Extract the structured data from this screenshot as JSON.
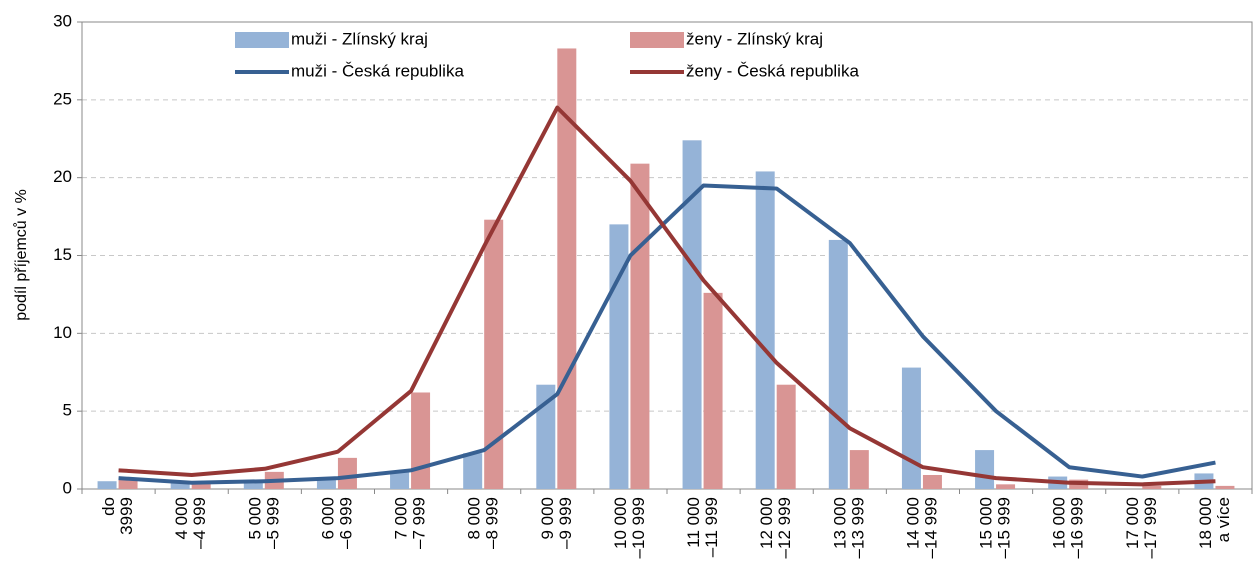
{
  "chart_data": {
    "type": "bar",
    "y_label": "podíl příjemců v %",
    "categories": [
      [
        "do",
        "3999"
      ],
      [
        "4 000",
        "–4 999"
      ],
      [
        "5 000",
        "–5 999"
      ],
      [
        "6 000",
        "–6 999"
      ],
      [
        "7 000",
        "–7 999"
      ],
      [
        "8 000",
        "–8 999"
      ],
      [
        "9 000",
        "–9 999"
      ],
      [
        "10 000",
        "–10 999"
      ],
      [
        "11 000",
        "–11 999"
      ],
      [
        "12 000",
        "–12 999"
      ],
      [
        "13 000",
        "–13 999"
      ],
      [
        "14 000",
        "–14 999"
      ],
      [
        "15 000",
        "–15 999"
      ],
      [
        "16 000",
        "–16 999"
      ],
      [
        "17 000",
        "–17 999"
      ],
      [
        "18 000",
        "a více"
      ]
    ],
    "series": [
      {
        "name": "muži - Zlínský kraj",
        "type": "bar",
        "color": "#95b3d7",
        "values": [
          0.5,
          0.4,
          0.5,
          0.6,
          1.1,
          2.3,
          6.7,
          17.0,
          22.4,
          20.4,
          16.0,
          7.8,
          2.5,
          0.8,
          0.0,
          1.0
        ]
      },
      {
        "name": "ženy - Zlínský kraj",
        "type": "bar",
        "color": "#d99594",
        "values": [
          0.7,
          0.5,
          1.1,
          2.0,
          6.2,
          17.3,
          28.3,
          20.9,
          12.6,
          6.7,
          2.5,
          0.9,
          0.3,
          0.6,
          0.2,
          0.2
        ]
      },
      {
        "name": "muži - Česká republika",
        "type": "line",
        "color": "#376092",
        "values": [
          0.7,
          0.4,
          0.5,
          0.7,
          1.2,
          2.5,
          6.1,
          15.0,
          19.5,
          19.3,
          15.8,
          9.8,
          5.0,
          1.4,
          0.8,
          1.7
        ]
      },
      {
        "name": "ženy - Česká republika",
        "type": "line",
        "color": "#953735",
        "values": [
          1.2,
          0.9,
          1.3,
          2.4,
          6.3,
          15.6,
          24.5,
          19.8,
          13.4,
          8.1,
          3.9,
          1.4,
          0.7,
          0.4,
          0.3,
          0.5
        ]
      }
    ],
    "ylim": [
      0,
      30
    ],
    "yticks": [
      0,
      5,
      10,
      15,
      20,
      25,
      30
    ],
    "grid": true,
    "legend": "top"
  }
}
